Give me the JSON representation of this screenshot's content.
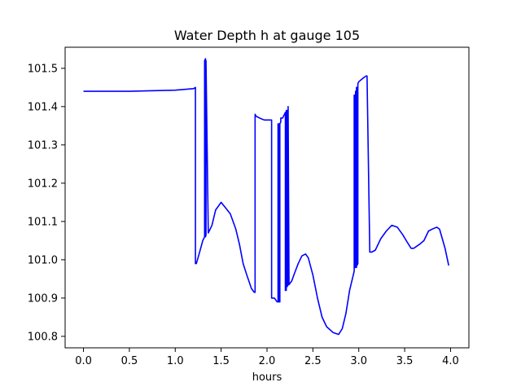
{
  "chart_data": {
    "type": "line",
    "title": "Water Depth h at gauge 105",
    "xlabel": "hours",
    "ylabel": "",
    "xlim": [
      -0.2,
      4.2
    ],
    "ylim": [
      100.77,
      101.555
    ],
    "xticks": [
      0.0,
      0.5,
      1.0,
      1.5,
      2.0,
      2.5,
      3.0,
      3.5,
      4.0
    ],
    "xtick_labels": [
      "0.0",
      "0.5",
      "1.0",
      "1.5",
      "2.0",
      "2.5",
      "3.0",
      "3.5",
      "4.0"
    ],
    "yticks": [
      100.8,
      100.9,
      101.0,
      101.1,
      101.2,
      101.3,
      101.4,
      101.5
    ],
    "ytick_labels": [
      "100.8",
      "100.9",
      "101.0",
      "101.1",
      "101.2",
      "101.3",
      "101.4",
      "101.5"
    ],
    "grid": false,
    "series": [
      {
        "color": "#0000ff",
        "x": [
          0.0,
          0.5,
          1.0,
          1.2,
          1.22,
          1.22,
          1.23,
          1.26,
          1.3,
          1.32,
          1.32,
          1.33,
          1.33,
          1.335,
          1.335,
          1.36,
          1.4,
          1.44,
          1.5,
          1.55,
          1.6,
          1.66,
          1.7,
          1.74,
          1.78,
          1.83,
          1.86,
          1.87,
          1.87,
          1.88,
          1.92,
          1.97,
          2.03,
          2.05,
          2.05,
          2.08,
          2.11,
          2.12,
          2.12,
          2.13,
          2.13,
          2.14,
          2.14,
          2.15,
          2.15,
          2.17,
          2.2,
          2.2,
          2.21,
          2.21,
          2.22,
          2.22,
          2.23,
          2.23,
          2.24,
          2.27,
          2.3,
          2.34,
          2.38,
          2.42,
          2.45,
          2.5,
          2.55,
          2.6,
          2.65,
          2.72,
          2.78,
          2.82,
          2.86,
          2.9,
          2.94,
          2.95,
          2.95,
          2.96,
          2.96,
          2.965,
          2.965,
          2.97,
          2.97,
          2.975,
          2.975,
          2.98,
          2.98,
          2.99,
          2.99,
          3.0,
          3.05,
          3.08,
          3.09,
          3.12,
          3.14,
          3.18,
          3.24,
          3.3,
          3.36,
          3.42,
          3.48,
          3.53,
          3.57,
          3.6,
          3.66,
          3.71,
          3.76,
          3.8,
          3.85,
          3.88,
          3.91,
          3.94,
          3.98
        ],
        "y": [
          101.44,
          101.44,
          101.443,
          101.447,
          101.45,
          100.99,
          100.99,
          101.015,
          101.05,
          101.06,
          101.52,
          101.525,
          101.06,
          101.065,
          101.52,
          101.07,
          101.09,
          101.13,
          101.15,
          101.135,
          101.12,
          101.08,
          101.04,
          100.99,
          100.96,
          100.925,
          100.915,
          100.915,
          101.38,
          101.375,
          101.37,
          101.365,
          101.365,
          101.365,
          100.9,
          100.9,
          100.89,
          100.89,
          101.355,
          101.355,
          100.89,
          100.89,
          101.355,
          101.36,
          101.37,
          101.37,
          101.385,
          100.92,
          100.92,
          101.39,
          101.39,
          100.93,
          100.935,
          101.4,
          100.935,
          100.945,
          100.965,
          100.99,
          101.01,
          101.015,
          101.005,
          100.96,
          100.9,
          100.85,
          100.825,
          100.81,
          100.805,
          100.82,
          100.86,
          100.92,
          100.96,
          100.97,
          101.43,
          101.43,
          100.98,
          100.98,
          101.44,
          101.44,
          100.98,
          100.98,
          101.45,
          101.45,
          100.985,
          100.99,
          101.46,
          101.465,
          101.475,
          101.48,
          101.48,
          101.02,
          101.02,
          101.025,
          101.055,
          101.075,
          101.09,
          101.085,
          101.065,
          101.045,
          101.03,
          101.03,
          101.04,
          101.05,
          101.075,
          101.08,
          101.085,
          101.08,
          101.055,
          101.03,
          100.985
        ]
      }
    ]
  }
}
